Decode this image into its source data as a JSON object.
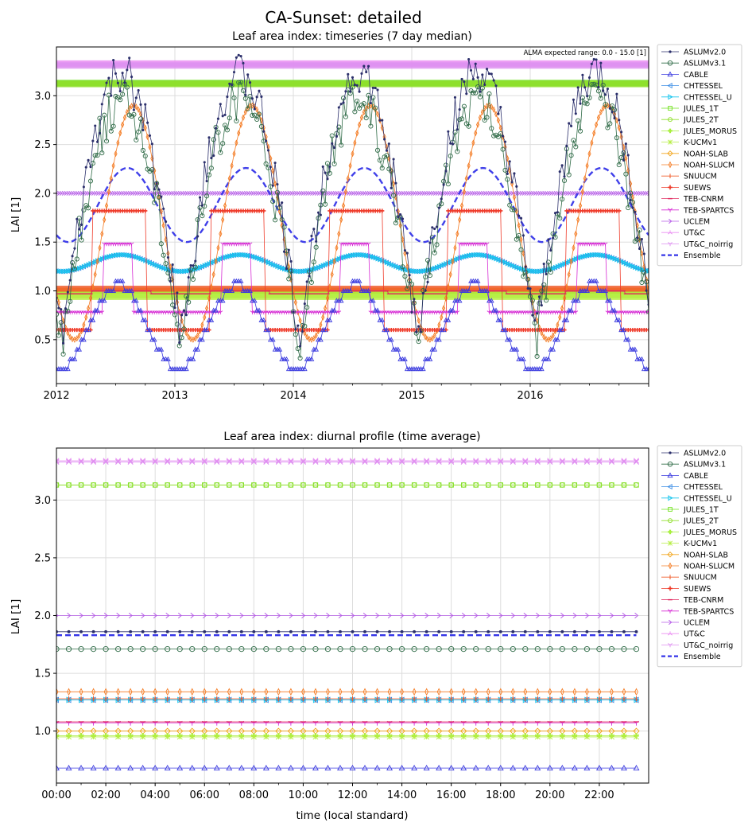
{
  "figure": {
    "title": "CA-Sunset: detailed",
    "legend_entries": [
      {
        "name": "ASLUMv2.0",
        "color": "#2b2f6b",
        "marker": "dot"
      },
      {
        "name": "ASLUMv3.1",
        "color": "#2e6a46",
        "marker": "circle"
      },
      {
        "name": "CABLE",
        "color": "#3a3adf",
        "marker": "triangle-up"
      },
      {
        "name": "CHTESSEL",
        "color": "#3f8fe6",
        "marker": "triangle-left"
      },
      {
        "name": "CHTESSEL_U",
        "color": "#16c5ee",
        "marker": "triangle-right"
      },
      {
        "name": "JULES_1T",
        "color": "#6fe01a",
        "marker": "square"
      },
      {
        "name": "JULES_2T",
        "color": "#8fdf2a",
        "marker": "hexagon"
      },
      {
        "name": "JULES_MORUS",
        "color": "#a7ef3c",
        "marker": "plus-filled"
      },
      {
        "name": "K-UCMv1",
        "color": "#b6ee43",
        "marker": "star"
      },
      {
        "name": "NOAH-SLAB",
        "color": "#f2a51a",
        "marker": "diamond"
      },
      {
        "name": "NOAH-SLUCM",
        "color": "#f47c25",
        "marker": "thin-diamond"
      },
      {
        "name": "SNUUCM",
        "color": "#f05a28",
        "marker": "vline"
      },
      {
        "name": "SUEWS",
        "color": "#ef3b2a",
        "marker": "plus"
      },
      {
        "name": "TEB-CNRM",
        "color": "#e0285e",
        "marker": "hline"
      },
      {
        "name": "TEB-SPARTCS",
        "color": "#d62bd4",
        "marker": "tri-down"
      },
      {
        "name": "UCLEM",
        "color": "#b75ee8",
        "marker": "arrow-right"
      },
      {
        "name": "UT&C",
        "color": "#e98ef2",
        "marker": "tri-up"
      },
      {
        "name": "UT&C_noirrig",
        "color": "#dd8ff0",
        "marker": "tri-down"
      },
      {
        "name": "Ensemble",
        "color": "#3535e8",
        "marker": "dash"
      }
    ]
  },
  "chart_data": [
    {
      "type": "line",
      "title": "Leaf area index: timeseries (7 day median)",
      "ylabel": "LAI [1]",
      "xlabel": "",
      "annotation": "ALMA expected range: 0.0 - 15.0 [1]",
      "x_range": [
        2012.0,
        2017.0
      ],
      "ylim": [
        0.05,
        3.5
      ],
      "x_ticks": [
        "2012",
        "2013",
        "2014",
        "2015",
        "2016"
      ],
      "x_tick_values": [
        2012,
        2013,
        2014,
        2015,
        2016
      ],
      "y_ticks": [
        "0.5",
        "1.0",
        "1.5",
        "2.0",
        "2.5",
        "3.0"
      ],
      "y_tick_values": [
        0.5,
        1.0,
        1.5,
        2.0,
        2.5,
        3.0
      ],
      "grid": true,
      "legend_position": "outside-right",
      "series": [
        {
          "name": "UT&C",
          "pattern": "const",
          "value": 3.33
        },
        {
          "name": "UT&C_noirrig",
          "pattern": "const",
          "value": 3.31
        },
        {
          "name": "JULES_1T",
          "pattern": "const",
          "value": 3.13
        },
        {
          "name": "JULES_2T",
          "pattern": "const",
          "value": 3.12
        },
        {
          "name": "UCLEM",
          "pattern": "const",
          "value": 2.0
        },
        {
          "name": "NOAH-SLAB",
          "pattern": "const",
          "value": 1.0
        },
        {
          "name": "SNUUCM",
          "pattern": "const",
          "value": 1.02
        },
        {
          "name": "JULES_MORUS",
          "pattern": "const",
          "value": 0.96
        },
        {
          "name": "K-UCMv1",
          "pattern": "const",
          "value": 0.94
        },
        {
          "name": "CHTESSEL",
          "pattern": "seasonal",
          "min": 1.2,
          "max": 1.37,
          "peak_frac": 0.55
        },
        {
          "name": "CHTESSEL_U",
          "pattern": "seasonal",
          "min": 1.2,
          "max": 1.37,
          "peak_frac": 0.55
        },
        {
          "name": "Ensemble",
          "pattern": "seasonal",
          "min": 1.5,
          "max": 2.26,
          "peak_frac": 0.6
        },
        {
          "name": "NOAH-SLUCM",
          "pattern": "seasonal",
          "min": 0.5,
          "max": 2.9,
          "peak_frac": 0.65
        },
        {
          "name": "SUEWS",
          "pattern": "step",
          "min": 0.6,
          "max": 1.82,
          "on": 0.3,
          "off": 0.75
        },
        {
          "name": "TEB-SPARTCS",
          "pattern": "step",
          "min": 0.78,
          "max": 1.48,
          "on": 0.4,
          "off": 0.65
        },
        {
          "name": "TEB-CNRM",
          "pattern": "step",
          "min": 0.97,
          "max": 1.0,
          "on": 0.3,
          "off": 0.8
        },
        {
          "name": "CABLE",
          "pattern": "stair",
          "min": 0.2,
          "max": 1.06,
          "on": 0.35,
          "off": 0.7
        },
        {
          "name": "ASLUMv3.1",
          "pattern": "noisy",
          "min": 0.47,
          "max": 2.95,
          "peak_frac": 0.55
        },
        {
          "name": "ASLUMv2.0",
          "pattern": "noisy",
          "min": 0.5,
          "max": 3.22,
          "peak_frac": 0.55
        }
      ]
    },
    {
      "type": "line",
      "title": "Leaf area index: diurnal profile (time average)",
      "xlabel": "time (local standard)",
      "ylabel": "LAI [1]",
      "x_range": [
        0,
        24
      ],
      "ylim": [
        0.55,
        3.45
      ],
      "x_ticks": [
        "00:00",
        "02:00",
        "04:00",
        "06:00",
        "08:00",
        "10:00",
        "12:00",
        "14:00",
        "16:00",
        "18:00",
        "20:00",
        "22:00"
      ],
      "x_tick_values": [
        0,
        2,
        4,
        6,
        8,
        10,
        12,
        14,
        16,
        18,
        20,
        22
      ],
      "y_ticks": [
        "1.0",
        "1.5",
        "2.0",
        "2.5",
        "3.0"
      ],
      "y_tick_values": [
        1.0,
        1.5,
        2.0,
        2.5,
        3.0
      ],
      "grid": true,
      "legend_position": "outside-right",
      "series": [
        {
          "name": "UT&C",
          "value": 3.34
        },
        {
          "name": "UT&C_noirrig",
          "value": 3.33
        },
        {
          "name": "JULES_1T",
          "value": 3.13
        },
        {
          "name": "JULES_2T",
          "value": 3.13
        },
        {
          "name": "UCLEM",
          "value": 2.0
        },
        {
          "name": "ASLUMv2.0",
          "value": 1.86
        },
        {
          "name": "Ensemble",
          "value": 1.83
        },
        {
          "name": "ASLUMv3.1",
          "value": 1.71
        },
        {
          "name": "NOAH-SLUCM",
          "value": 1.34
        },
        {
          "name": "SUEWS",
          "value": 1.27
        },
        {
          "name": "CHTESSEL",
          "value": 1.27
        },
        {
          "name": "CHTESSEL_U",
          "value": 1.27
        },
        {
          "name": "SNUUCM",
          "value": 1.28
        },
        {
          "name": "TEB-SPARTCS",
          "value": 1.07
        },
        {
          "name": "TEB-CNRM",
          "value": 1.08
        },
        {
          "name": "NOAH-SLAB",
          "value": 1.0
        },
        {
          "name": "JULES_MORUS",
          "value": 0.96
        },
        {
          "name": "K-UCMv1",
          "value": 0.95
        },
        {
          "name": "CABLE",
          "value": 0.68
        }
      ]
    }
  ]
}
